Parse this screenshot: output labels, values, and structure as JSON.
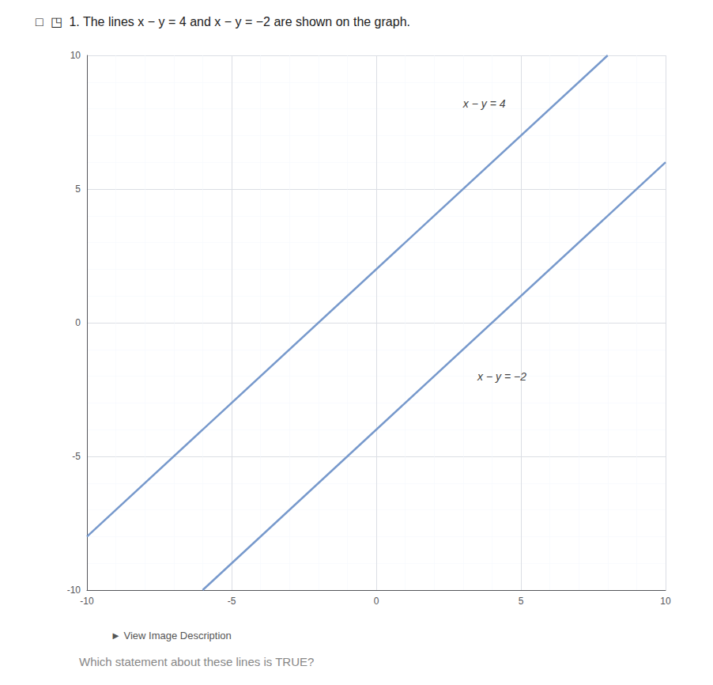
{
  "chart_data": {
    "type": "line",
    "title": "□  ◳  1. The lines x − y = 4 and x − y = −2 are shown on the graph.",
    "subtitle": "Which statement about these lines is TRUE?",
    "series": [
      {
        "color": "#7799CC",
        "x": [
          -6,
          10
        ],
        "values": [
          -10,
          6
        ]
      },
      {
        "color": "#7799CC",
        "x": [
          -10,
          8
        ],
        "values": [
          -8,
          10
        ]
      }
    ],
    "annotations": [
      {
        "text": "x − y = 4",
        "x": 3.0,
        "y": 8.2
      },
      {
        "text": "x − y = −2",
        "x": 3.5,
        "y": -2.0
      },
      {
        "text": "► View Image Description"
      }
    ],
    "xlim": [
      -10,
      10
    ],
    "ylim": [
      -10,
      10
    ],
    "xticks": [
      -10,
      -5,
      0,
      5,
      10
    ],
    "yticks": [
      -10,
      -5,
      0,
      5,
      10
    ],
    "grid": true
  }
}
